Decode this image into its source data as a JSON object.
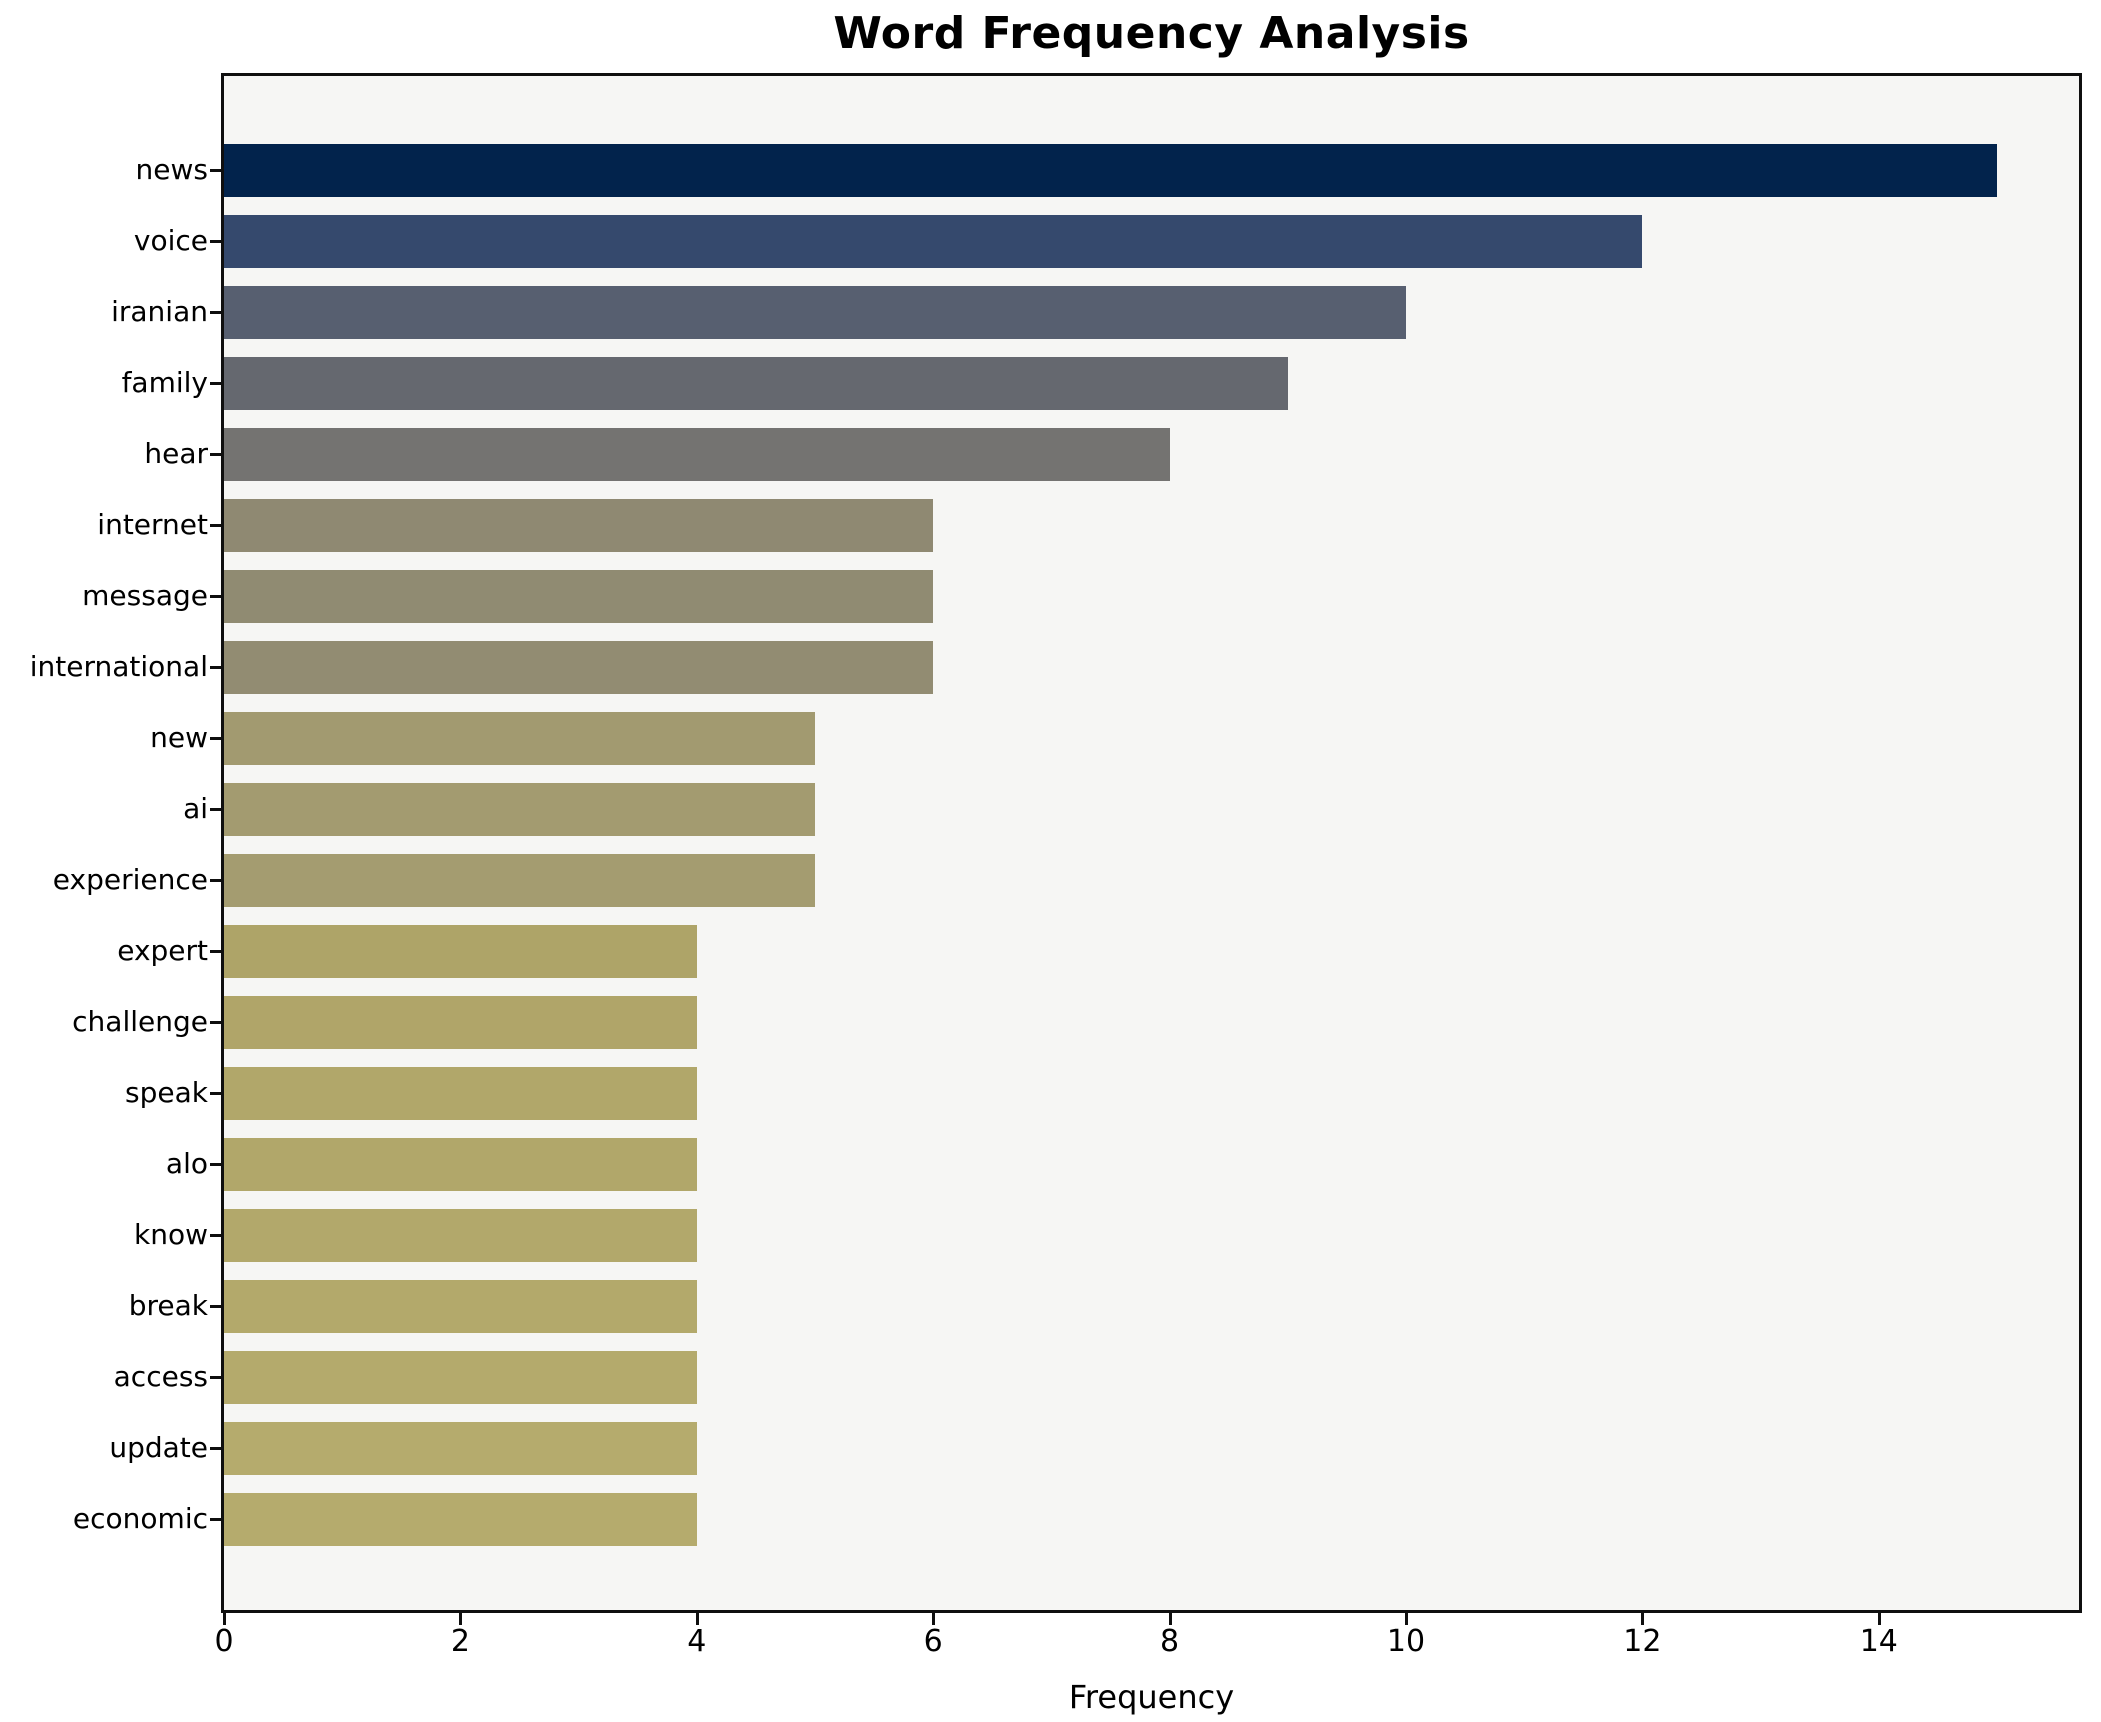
{
  "chart_data": {
    "type": "bar",
    "orientation": "horizontal",
    "title": "Word Frequency Analysis",
    "xlabel": "Frequency",
    "ylabel": "",
    "categories": [
      "news",
      "voice",
      "iranian",
      "family",
      "hear",
      "internet",
      "message",
      "international",
      "new",
      "ai",
      "experience",
      "expert",
      "challenge",
      "speak",
      "alo",
      "know",
      "break",
      "access",
      "update",
      "economic"
    ],
    "values": [
      15,
      12,
      10,
      9,
      8,
      6,
      6,
      6,
      5,
      5,
      5,
      4,
      4,
      4,
      4,
      4,
      4,
      4,
      4,
      4
    ],
    "bar_colors": [
      "#02234c",
      "#35496d",
      "#575f70",
      "#65686f",
      "#747371",
      "#8f8972",
      "#908b72",
      "#928c72",
      "#a29a70",
      "#a39b70",
      "#a49c70",
      "#aea468",
      "#b0a569",
      "#b1a76a",
      "#b1a76a",
      "#b2a86b",
      "#b3a96b",
      "#b4aa6c",
      "#b5ab6d",
      "#b5ab6d"
    ],
    "xlim": [
      0,
      15.7
    ],
    "x_ticks": [
      0,
      2,
      4,
      6,
      8,
      10,
      12,
      14
    ],
    "grid": false,
    "legend": null,
    "plot_background": "#f6f6f4",
    "figure_background": "#ffffff",
    "spine_color": "#0f0f0f"
  }
}
